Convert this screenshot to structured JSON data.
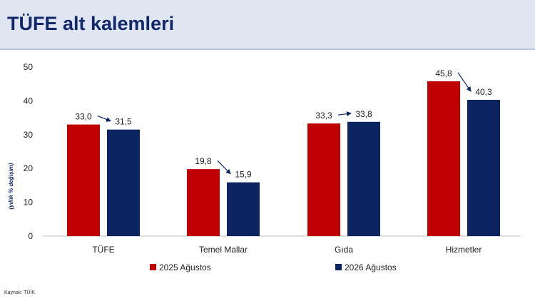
{
  "header": {
    "title": "TÜFE alt kalemleri"
  },
  "source": "Kaynak: TÜİK",
  "chart_data": {
    "type": "bar",
    "categories": [
      "TÜFE",
      "Temel Mallar",
      "Gıda",
      "Hizmetler"
    ],
    "series": [
      {
        "name": "2025 Ağustos",
        "values": [
          33.0,
          19.8,
          33.3,
          45.8
        ],
        "labels": [
          "33,0",
          "19,8",
          "33,3",
          "45,8"
        ],
        "color": "#c00000"
      },
      {
        "name": "2026 Ağustos",
        "values": [
          31.5,
          15.9,
          33.8,
          40.3
        ],
        "labels": [
          "31,5",
          "15,9",
          "33,8",
          "40,3"
        ],
        "color": "#0c2461"
      }
    ],
    "ylabel": "(yıllık % değişim)",
    "ylim": [
      0,
      50
    ],
    "yticks": [
      0,
      10,
      20,
      30,
      40,
      50
    ],
    "annotations": "arrows from 2025 Ağustos label to 2026 Ağustos label in each category",
    "grid": false,
    "legend": "bottom"
  }
}
